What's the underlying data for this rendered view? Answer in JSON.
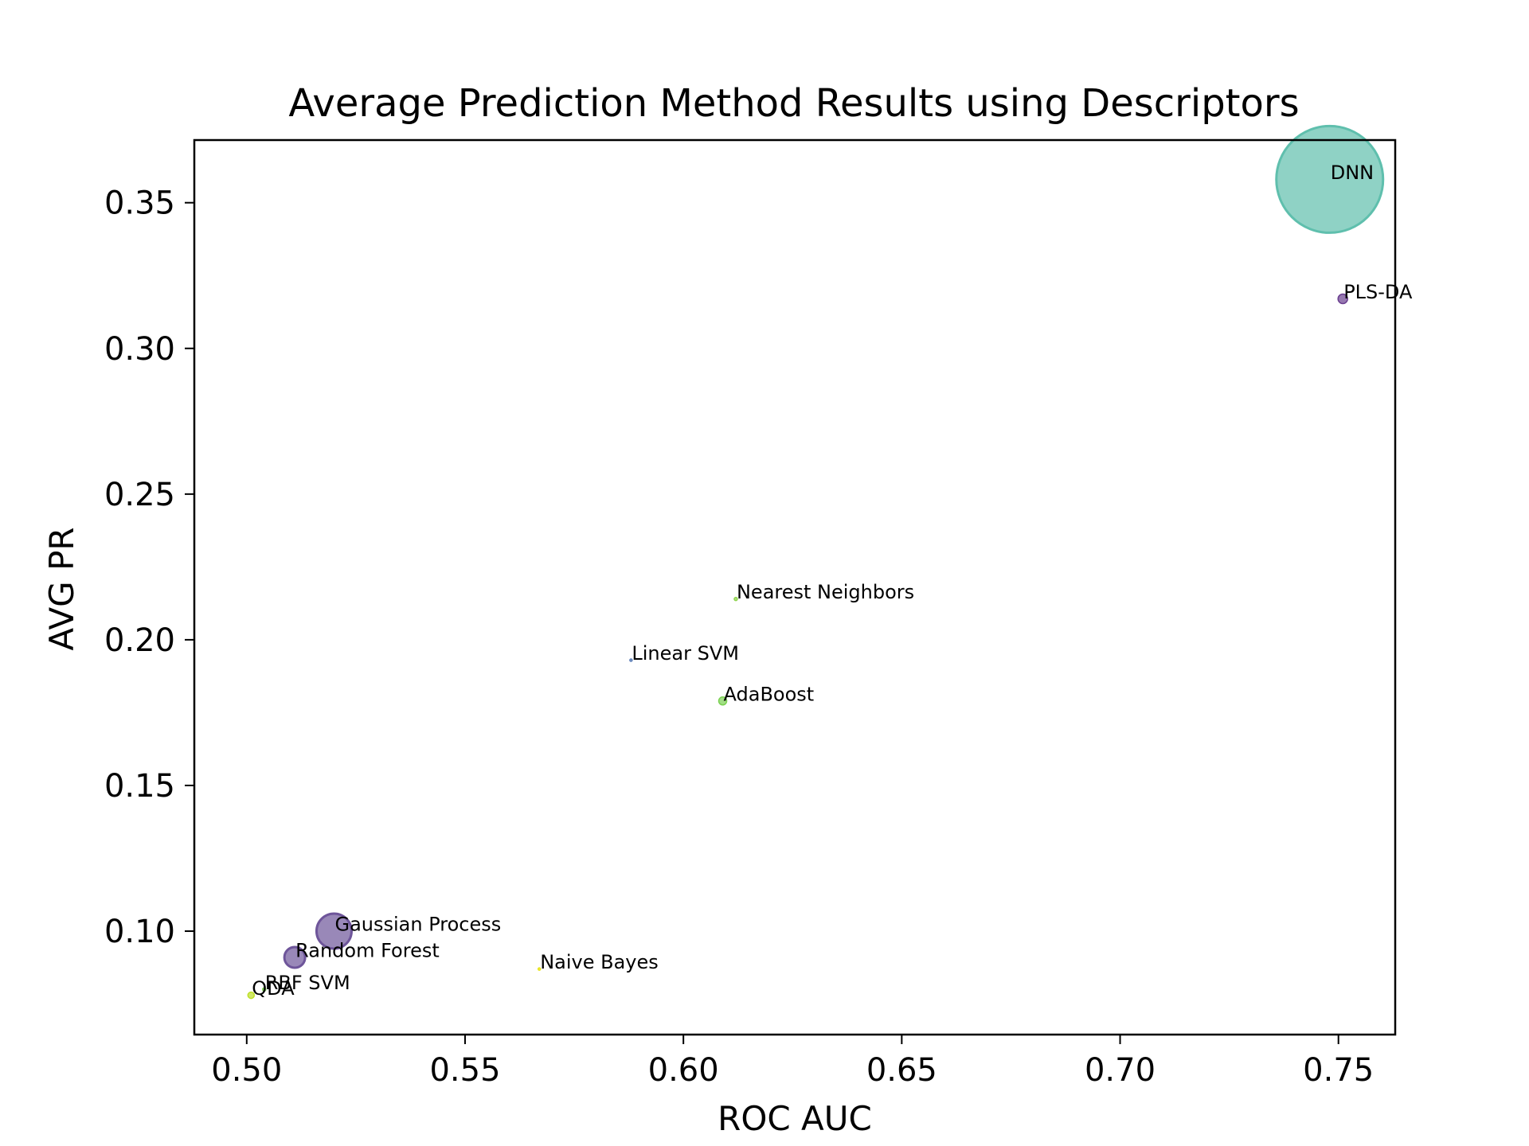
{
  "chart_data": {
    "type": "scatter",
    "title": "Average Prediction Method Results using Descriptors",
    "xlabel": "ROC AUC",
    "ylabel": "AVG PR",
    "xlim": [
      0.488,
      0.763
    ],
    "ylim": [
      0.0645,
      0.3715
    ],
    "xticks": [
      0.5,
      0.55,
      0.6,
      0.65,
      0.7,
      0.75
    ],
    "yticks": [
      0.1,
      0.15,
      0.2,
      0.25,
      0.3,
      0.35
    ],
    "grid": false,
    "legend": "none",
    "points": [
      {
        "label": "DNN",
        "x": 0.748,
        "y": 0.358,
        "size": 67,
        "color": "#5fbfad"
      },
      {
        "label": "PLS-DA",
        "x": 0.751,
        "y": 0.317,
        "size": 6,
        "color": "#6a3f8f"
      },
      {
        "label": "Nearest Neighbors",
        "x": 0.612,
        "y": 0.214,
        "size": 2,
        "color": "#8fd44f"
      },
      {
        "label": "Linear SVM",
        "x": 0.588,
        "y": 0.193,
        "size": 1.5,
        "color": "#5d7fb8"
      },
      {
        "label": "AdaBoost",
        "x": 0.609,
        "y": 0.179,
        "size": 5,
        "color": "#7ad151"
      },
      {
        "label": "Gaussian Process",
        "x": 0.52,
        "y": 0.1,
        "size": 22,
        "color": "#6e559a"
      },
      {
        "label": "Random Forest",
        "x": 0.511,
        "y": 0.091,
        "size": 13,
        "color": "#6e559a"
      },
      {
        "label": "Naive Bayes",
        "x": 0.567,
        "y": 0.087,
        "size": 1.5,
        "color": "#e8e419"
      },
      {
        "label": "RBF SVM",
        "x": 0.504,
        "y": 0.08,
        "size": 2,
        "color": "#7ad151"
      },
      {
        "label": "QDA",
        "x": 0.501,
        "y": 0.078,
        "size": 4,
        "color": "#bddf26"
      }
    ]
  }
}
